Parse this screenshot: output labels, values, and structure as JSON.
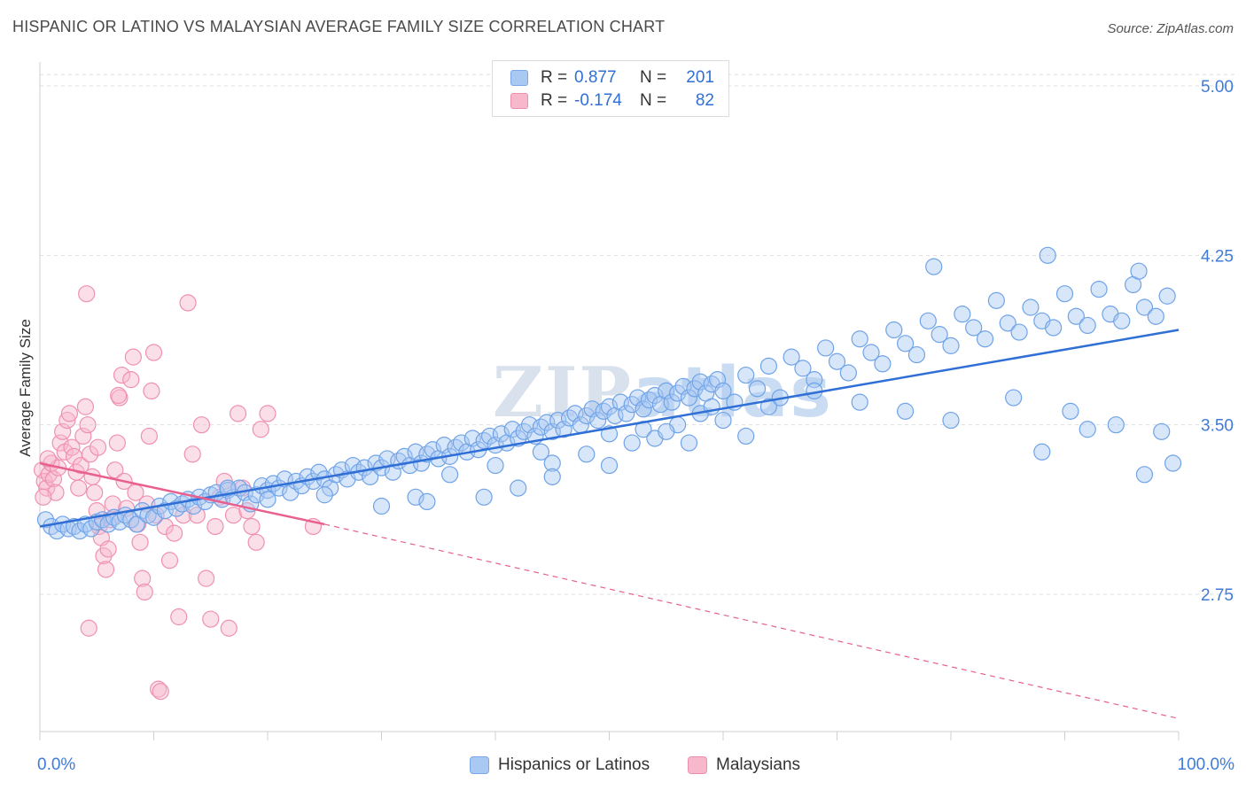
{
  "title": "HISPANIC OR LATINO VS MALAYSIAN AVERAGE FAMILY SIZE CORRELATION CHART",
  "source": "Source: ZipAtlas.com",
  "watermark": {
    "zip": "ZIP",
    "atlas": "atlas"
  },
  "legend_top": {
    "rows": [
      {
        "r_label": "R =",
        "r_value": "0.877",
        "n_label": "N =",
        "n_value": "201",
        "color": "#a9c8f2",
        "border": "#7aa7e6"
      },
      {
        "r_label": "R =",
        "r_value": "-0.174",
        "n_label": "N =",
        "n_value": "82",
        "color": "#f7b8cc",
        "border": "#ec8fae"
      }
    ]
  },
  "legend_bottom": [
    {
      "label": "Hispanics or Latinos",
      "color": "#a9c8f2",
      "border": "#7aa7e6"
    },
    {
      "label": "Malaysians",
      "color": "#f7b8cc",
      "border": "#ec8fae"
    }
  ],
  "chart_data": {
    "type": "scatter",
    "title": "HISPANIC OR LATINO VS MALAYSIAN AVERAGE FAMILY SIZE CORRELATION CHART",
    "xlabel": "",
    "ylabel": "Average Family Size",
    "xlim": [
      0,
      100
    ],
    "ylim": [
      2.2,
      5.05
    ],
    "x_tick_labels": [
      "0.0%",
      "100.0%"
    ],
    "y_ticks": [
      2.75,
      3.5,
      4.25,
      5.0
    ],
    "y_tick_labels": [
      "2.75",
      "3.50",
      "4.25",
      "5.00"
    ],
    "grid": true,
    "legend_position": "top-center",
    "colors": {
      "hispanic": "#6fa3e8",
      "hispanic_line": "#2f6fd6",
      "malaysian": "#f090b0",
      "malaysian_line": "#e8608e"
    },
    "series": [
      {
        "name": "Hispanics or Latinos",
        "trend": {
          "x": [
            0,
            100
          ],
          "y": [
            3.05,
            3.92
          ]
        },
        "points": [
          [
            0.5,
            3.08
          ],
          [
            1,
            3.05
          ],
          [
            1.5,
            3.03
          ],
          [
            2,
            3.06
          ],
          [
            2.5,
            3.04
          ],
          [
            3,
            3.05
          ],
          [
            3.5,
            3.03
          ],
          [
            4,
            3.06
          ],
          [
            4.5,
            3.04
          ],
          [
            5,
            3.07
          ],
          [
            5.5,
            3.08
          ],
          [
            6,
            3.06
          ],
          [
            6.5,
            3.09
          ],
          [
            7,
            3.07
          ],
          [
            7.5,
            3.1
          ],
          [
            8,
            3.08
          ],
          [
            8.5,
            3.06
          ],
          [
            9,
            3.12
          ],
          [
            9.5,
            3.1
          ],
          [
            10,
            3.09
          ],
          [
            10.5,
            3.14
          ],
          [
            11,
            3.12
          ],
          [
            11.5,
            3.16
          ],
          [
            12,
            3.13
          ],
          [
            12.5,
            3.15
          ],
          [
            13,
            3.17
          ],
          [
            13.5,
            3.14
          ],
          [
            14,
            3.18
          ],
          [
            14.5,
            3.16
          ],
          [
            15,
            3.19
          ],
          [
            15.5,
            3.2
          ],
          [
            16,
            3.17
          ],
          [
            16.5,
            3.21
          ],
          [
            17,
            3.18
          ],
          [
            17.5,
            3.22
          ],
          [
            18,
            3.2
          ],
          [
            18.5,
            3.15
          ],
          [
            19,
            3.19
          ],
          [
            19.5,
            3.23
          ],
          [
            20,
            3.21
          ],
          [
            20.5,
            3.24
          ],
          [
            21,
            3.22
          ],
          [
            21.5,
            3.26
          ],
          [
            22,
            3.2
          ],
          [
            22.5,
            3.25
          ],
          [
            23,
            3.23
          ],
          [
            23.5,
            3.27
          ],
          [
            24,
            3.25
          ],
          [
            24.5,
            3.29
          ],
          [
            25,
            3.26
          ],
          [
            25.5,
            3.22
          ],
          [
            26,
            3.28
          ],
          [
            26.5,
            3.3
          ],
          [
            27,
            3.26
          ],
          [
            27.5,
            3.32
          ],
          [
            28,
            3.29
          ],
          [
            28.5,
            3.31
          ],
          [
            29,
            3.27
          ],
          [
            29.5,
            3.33
          ],
          [
            30,
            3.31
          ],
          [
            30.5,
            3.35
          ],
          [
            31,
            3.29
          ],
          [
            31.5,
            3.34
          ],
          [
            32,
            3.36
          ],
          [
            32.5,
            3.32
          ],
          [
            33,
            3.38
          ],
          [
            33.5,
            3.33
          ],
          [
            34,
            3.37
          ],
          [
            34.5,
            3.39
          ],
          [
            35,
            3.35
          ],
          [
            35.5,
            3.41
          ],
          [
            36,
            3.36
          ],
          [
            36.5,
            3.4
          ],
          [
            37,
            3.42
          ],
          [
            37.5,
            3.38
          ],
          [
            38,
            3.44
          ],
          [
            38.5,
            3.39
          ],
          [
            39,
            3.43
          ],
          [
            39.5,
            3.45
          ],
          [
            40,
            3.41
          ],
          [
            40.5,
            3.46
          ],
          [
            41,
            3.42
          ],
          [
            41.5,
            3.48
          ],
          [
            42,
            3.44
          ],
          [
            42.5,
            3.47
          ],
          [
            43,
            3.5
          ],
          [
            43.5,
            3.45
          ],
          [
            44,
            3.49
          ],
          [
            44.5,
            3.51
          ],
          [
            45,
            3.47
          ],
          [
            45.5,
            3.52
          ],
          [
            46,
            3.48
          ],
          [
            46.5,
            3.53
          ],
          [
            47,
            3.55
          ],
          [
            47.5,
            3.5
          ],
          [
            48,
            3.54
          ],
          [
            48.5,
            3.57
          ],
          [
            49,
            3.52
          ],
          [
            49.5,
            3.56
          ],
          [
            50,
            3.58
          ],
          [
            50.5,
            3.54
          ],
          [
            51,
            3.6
          ],
          [
            51.5,
            3.55
          ],
          [
            52,
            3.59
          ],
          [
            52.5,
            3.62
          ],
          [
            53,
            3.57
          ],
          [
            53.5,
            3.61
          ],
          [
            54,
            3.63
          ],
          [
            54.5,
            3.59
          ],
          [
            55,
            3.65
          ],
          [
            55.5,
            3.6
          ],
          [
            56,
            3.64
          ],
          [
            56.5,
            3.67
          ],
          [
            57,
            3.62
          ],
          [
            57.5,
            3.66
          ],
          [
            58,
            3.69
          ],
          [
            58.5,
            3.64
          ],
          [
            59,
            3.68
          ],
          [
            59.5,
            3.7
          ],
          [
            60,
            3.65
          ],
          [
            16.5,
            3.22
          ],
          [
            20,
            3.17
          ],
          [
            25,
            3.19
          ],
          [
            33,
            3.18
          ],
          [
            36,
            3.28
          ],
          [
            40,
            3.32
          ],
          [
            44,
            3.38
          ],
          [
            45,
            3.33
          ],
          [
            48,
            3.37
          ],
          [
            50,
            3.46
          ],
          [
            52,
            3.42
          ],
          [
            53,
            3.48
          ],
          [
            54,
            3.44
          ],
          [
            56,
            3.5
          ],
          [
            58,
            3.55
          ],
          [
            59,
            3.58
          ],
          [
            60,
            3.52
          ],
          [
            61,
            3.6
          ],
          [
            62,
            3.72
          ],
          [
            63,
            3.66
          ],
          [
            64,
            3.76
          ],
          [
            65,
            3.62
          ],
          [
            66,
            3.8
          ],
          [
            67,
            3.75
          ],
          [
            68,
            3.7
          ],
          [
            69,
            3.84
          ],
          [
            70,
            3.78
          ],
          [
            71,
            3.73
          ],
          [
            72,
            3.88
          ],
          [
            73,
            3.82
          ],
          [
            74,
            3.77
          ],
          [
            75,
            3.92
          ],
          [
            76,
            3.86
          ],
          [
            77,
            3.81
          ],
          [
            78,
            3.96
          ],
          [
            79,
            3.9
          ],
          [
            80,
            3.85
          ],
          [
            81,
            3.99
          ],
          [
            82,
            3.93
          ],
          [
            83,
            3.88
          ],
          [
            84,
            4.05
          ],
          [
            85,
            3.95
          ],
          [
            86,
            3.91
          ],
          [
            87,
            4.02
          ],
          [
            88,
            3.96
          ],
          [
            89,
            3.93
          ],
          [
            90,
            4.08
          ],
          [
            91,
            3.98
          ],
          [
            92,
            3.94
          ],
          [
            93,
            4.1
          ],
          [
            94,
            3.99
          ],
          [
            95,
            3.96
          ],
          [
            96,
            4.12
          ],
          [
            97,
            4.02
          ],
          [
            98,
            3.98
          ],
          [
            99,
            4.07
          ],
          [
            78.5,
            4.2
          ],
          [
            88.5,
            4.25
          ],
          [
            96.5,
            4.18
          ],
          [
            85.5,
            3.62
          ],
          [
            90.5,
            3.56
          ],
          [
            94.5,
            3.5
          ],
          [
            98.5,
            3.47
          ],
          [
            97,
            3.28
          ],
          [
            99.5,
            3.33
          ],
          [
            88,
            3.38
          ],
          [
            92,
            3.48
          ],
          [
            80,
            3.52
          ],
          [
            76,
            3.56
          ],
          [
            72,
            3.6
          ],
          [
            68,
            3.65
          ],
          [
            64,
            3.58
          ],
          [
            62,
            3.45
          ],
          [
            57,
            3.42
          ],
          [
            55,
            3.47
          ],
          [
            50,
            3.32
          ],
          [
            45,
            3.27
          ],
          [
            42,
            3.22
          ],
          [
            39,
            3.18
          ],
          [
            34,
            3.16
          ],
          [
            30,
            3.14
          ]
        ]
      },
      {
        "name": "Malaysians",
        "trend": {
          "x": [
            0,
            25
          ],
          "y": [
            3.33,
            3.06
          ]
        },
        "trend_dashed": {
          "x": [
            25,
            100
          ],
          "y": [
            3.06,
            2.2
          ]
        },
        "points": [
          [
            0.2,
            3.3
          ],
          [
            0.4,
            3.25
          ],
          [
            0.6,
            3.22
          ],
          [
            0.8,
            3.28
          ],
          [
            1,
            3.33
          ],
          [
            1.2,
            3.26
          ],
          [
            1.4,
            3.2
          ],
          [
            1.6,
            3.31
          ],
          [
            0.3,
            3.18
          ],
          [
            0.7,
            3.35
          ],
          [
            1.8,
            3.42
          ],
          [
            2,
            3.47
          ],
          [
            2.2,
            3.38
          ],
          [
            2.4,
            3.52
          ],
          [
            2.6,
            3.55
          ],
          [
            2.8,
            3.4
          ],
          [
            3,
            3.36
          ],
          [
            3.2,
            3.29
          ],
          [
            3.4,
            3.22
          ],
          [
            3.6,
            3.32
          ],
          [
            3.8,
            3.45
          ],
          [
            4,
            3.58
          ],
          [
            4.2,
            3.5
          ],
          [
            4.4,
            3.37
          ],
          [
            4.6,
            3.27
          ],
          [
            4.8,
            3.2
          ],
          [
            5,
            3.12
          ],
          [
            5.2,
            3.05
          ],
          [
            5.4,
            3.0
          ],
          [
            5.6,
            2.92
          ],
          [
            5.8,
            2.86
          ],
          [
            6,
            2.95
          ],
          [
            6.2,
            3.08
          ],
          [
            6.4,
            3.15
          ],
          [
            6.6,
            3.3
          ],
          [
            6.8,
            3.42
          ],
          [
            7,
            3.62
          ],
          [
            7.2,
            3.72
          ],
          [
            7.4,
            3.25
          ],
          [
            7.6,
            3.13
          ],
          [
            4.1,
            4.08
          ],
          [
            8,
            3.7
          ],
          [
            8.2,
            3.8
          ],
          [
            8.4,
            3.2
          ],
          [
            8.6,
            3.06
          ],
          [
            8.8,
            2.98
          ],
          [
            9,
            2.82
          ],
          [
            9.2,
            2.76
          ],
          [
            9.4,
            3.15
          ],
          [
            9.6,
            3.45
          ],
          [
            9.8,
            3.65
          ],
          [
            10,
            3.82
          ],
          [
            10.2,
            3.1
          ],
          [
            10.4,
            2.33
          ],
          [
            10.6,
            2.32
          ],
          [
            11,
            3.05
          ],
          [
            11.4,
            2.9
          ],
          [
            11.8,
            3.02
          ],
          [
            12.2,
            2.65
          ],
          [
            12.6,
            3.1
          ],
          [
            13,
            4.04
          ],
          [
            13.4,
            3.37
          ],
          [
            13.8,
            3.1
          ],
          [
            14.2,
            3.5
          ],
          [
            14.6,
            2.82
          ],
          [
            15,
            2.64
          ],
          [
            15.4,
            3.05
          ],
          [
            15.8,
            3.18
          ],
          [
            16.2,
            3.25
          ],
          [
            16.6,
            2.6
          ],
          [
            17,
            3.1
          ],
          [
            17.4,
            3.55
          ],
          [
            17.8,
            3.22
          ],
          [
            18.2,
            3.12
          ],
          [
            18.6,
            3.05
          ],
          [
            19,
            2.98
          ],
          [
            19.4,
            3.48
          ],
          [
            20,
            3.55
          ],
          [
            4.3,
            2.6
          ],
          [
            5.1,
            3.4
          ],
          [
            6.9,
            3.63
          ],
          [
            24,
            3.05
          ]
        ]
      }
    ]
  }
}
